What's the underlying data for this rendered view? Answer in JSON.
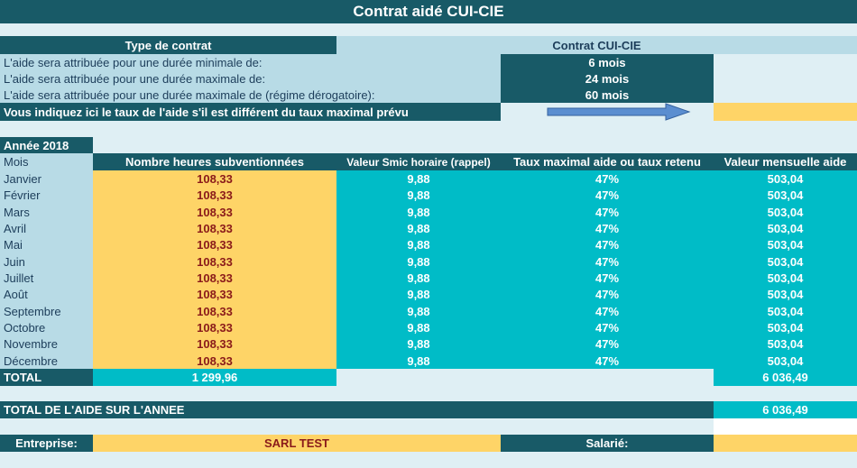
{
  "title": "Contrat aidé CUI-CIE",
  "contract": {
    "type_label": "Type de contrat",
    "type_value": "Contrat CUI-CIE",
    "rows": [
      {
        "label": "L'aide sera attribuée pour une durée minimale de:",
        "value": "6 mois"
      },
      {
        "label": "L'aide sera attribuée pour une durée maximale de:",
        "value": "24 mois"
      },
      {
        "label": "L'aide sera attribuée pour une durée maximale de (régime dérogatoire):",
        "value": "60 mois"
      }
    ],
    "taux_label": "Vous indiquez ici le taux de l'aide s'il est différent du taux maximal prévu",
    "taux_value": ""
  },
  "table": {
    "year_label": "Année 2018",
    "headers": {
      "mois": "Mois",
      "heures": "Nombre heures subventionnées",
      "smic": "Valeur Smic horaire (rappel)",
      "taux": "Taux maximal aide ou taux retenu",
      "mensuelle": "Valeur mensuelle aide"
    },
    "rows": [
      {
        "mois": "Janvier",
        "heures": "108,33",
        "smic": "9,88",
        "taux": "47%",
        "mensuelle": "503,04"
      },
      {
        "mois": "Février",
        "heures": "108,33",
        "smic": "9,88",
        "taux": "47%",
        "mensuelle": "503,04"
      },
      {
        "mois": "Mars",
        "heures": "108,33",
        "smic": "9,88",
        "taux": "47%",
        "mensuelle": "503,04"
      },
      {
        "mois": "Avril",
        "heures": "108,33",
        "smic": "9,88",
        "taux": "47%",
        "mensuelle": "503,04"
      },
      {
        "mois": "Mai",
        "heures": "108,33",
        "smic": "9,88",
        "taux": "47%",
        "mensuelle": "503,04"
      },
      {
        "mois": "Juin",
        "heures": "108,33",
        "smic": "9,88",
        "taux": "47%",
        "mensuelle": "503,04"
      },
      {
        "mois": "Juillet",
        "heures": "108,33",
        "smic": "9,88",
        "taux": "47%",
        "mensuelle": "503,04"
      },
      {
        "mois": "Août",
        "heures": "108,33",
        "smic": "9,88",
        "taux": "47%",
        "mensuelle": "503,04"
      },
      {
        "mois": "Septembre",
        "heures": "108,33",
        "smic": "9,88",
        "taux": "47%",
        "mensuelle": "503,04"
      },
      {
        "mois": "Octobre",
        "heures": "108,33",
        "smic": "9,88",
        "taux": "47%",
        "mensuelle": "503,04"
      },
      {
        "mois": "Novembre",
        "heures": "108,33",
        "smic": "9,88",
        "taux": "47%",
        "mensuelle": "503,04"
      },
      {
        "mois": "Décembre",
        "heures": "108,33",
        "smic": "9,88",
        "taux": "47%",
        "mensuelle": "503,04"
      }
    ],
    "total": {
      "label": "TOTAL",
      "heures": "1 299,96",
      "mensuelle": "6 036,49"
    }
  },
  "total_annee": {
    "label": "TOTAL DE L'AIDE SUR L'ANNEE",
    "value": "6 036,49"
  },
  "footer": {
    "entreprise_label": "Entreprise:",
    "entreprise_value": "SARL TEST",
    "salarie_label": "Salarié:",
    "salarie_value": ""
  },
  "icons": {
    "arrow": "right-arrow-icon"
  },
  "colors": {
    "header_dark": "#185a67",
    "light_blue": "#b8dbe6",
    "pale_blue": "#dfeff4",
    "turquoise": "#00bcc7",
    "yellow": "#fed467",
    "dark_red_text": "#8a1a1a"
  }
}
